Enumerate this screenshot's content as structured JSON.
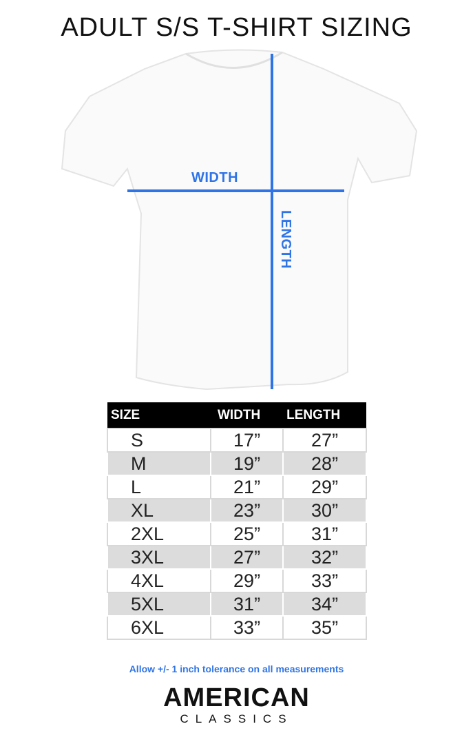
{
  "title": "ADULT S/S T-SHIRT SIZING",
  "diagram": {
    "width_label": "WIDTH",
    "length_label": "LENGTH",
    "line_color": "#2f74e6"
  },
  "table": {
    "headers": [
      "SIZE",
      "WIDTH",
      "LENGTH"
    ],
    "rows": [
      [
        "S",
        "17”",
        "27”"
      ],
      [
        "M",
        "19”",
        "28”"
      ],
      [
        "L",
        "21”",
        "29”"
      ],
      [
        "XL",
        "23”",
        "30”"
      ],
      [
        "2XL",
        "25”",
        "31”"
      ],
      [
        "3XL",
        "27”",
        "32”"
      ],
      [
        "4XL",
        "29”",
        "33”"
      ],
      [
        "5XL",
        "31”",
        "34”"
      ],
      [
        "6XL",
        "33”",
        "35”"
      ]
    ]
  },
  "note": "Allow +/- 1 inch tolerance on all measurements",
  "logo": {
    "line1": "AMERICAN",
    "line2": "CLASSICS"
  }
}
